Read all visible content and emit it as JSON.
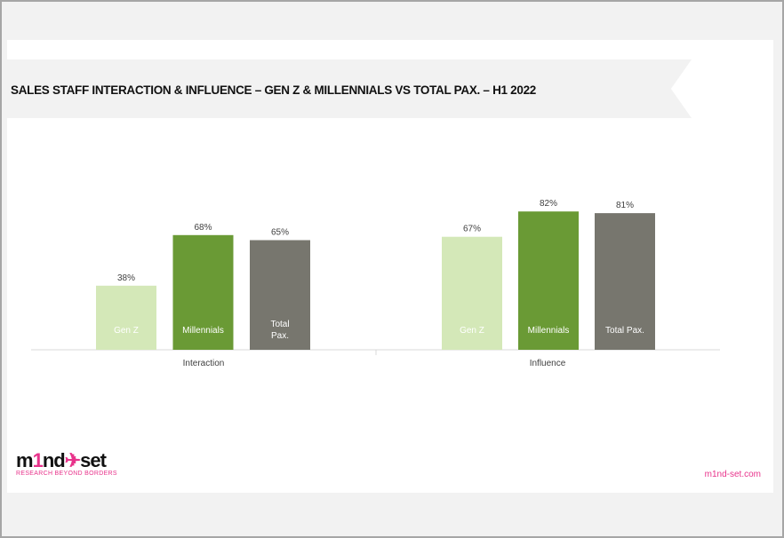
{
  "title": "SALES STAFF INTERACTION & INFLUENCE – GEN Z  & MILLENNIALS VS TOTAL PAX. – H1 2022",
  "brand": {
    "logo_text": "m1nd-set",
    "tagline": "RESEARCH BEYOND BORDERS",
    "website": "m1nd-set.com",
    "accent": "#e8338b"
  },
  "chart_data": {
    "type": "bar",
    "title": "SALES STAFF INTERACTION & INFLUENCE – GEN Z  & MILLENNIALS VS TOTAL PAX. – H1 2022",
    "categories": [
      "Interaction",
      "Influence"
    ],
    "series": [
      {
        "name": "Gen Z",
        "color": "#d4e8b8",
        "values": [
          38,
          67
        ],
        "labels": [
          "38%",
          "67%"
        ],
        "inner_labels": [
          [
            "Gen Z"
          ],
          [
            "Gen Z"
          ]
        ]
      },
      {
        "name": "Millennials",
        "color": "#6a9a35",
        "values": [
          68,
          82
        ],
        "labels": [
          "68%",
          "82%"
        ],
        "inner_labels": [
          [
            "Millennials"
          ],
          [
            "Millennials"
          ]
        ]
      },
      {
        "name": "Total Pax.",
        "color": "#77766e",
        "values": [
          65,
          81
        ],
        "labels": [
          "65%",
          "81%"
        ],
        "inner_labels": [
          [
            "Total",
            "Pax."
          ],
          [
            "Total Pax."
          ]
        ]
      }
    ],
    "ylim": [
      0,
      100
    ],
    "xlabel": "",
    "ylabel": "",
    "grid": false,
    "legend": "none"
  }
}
